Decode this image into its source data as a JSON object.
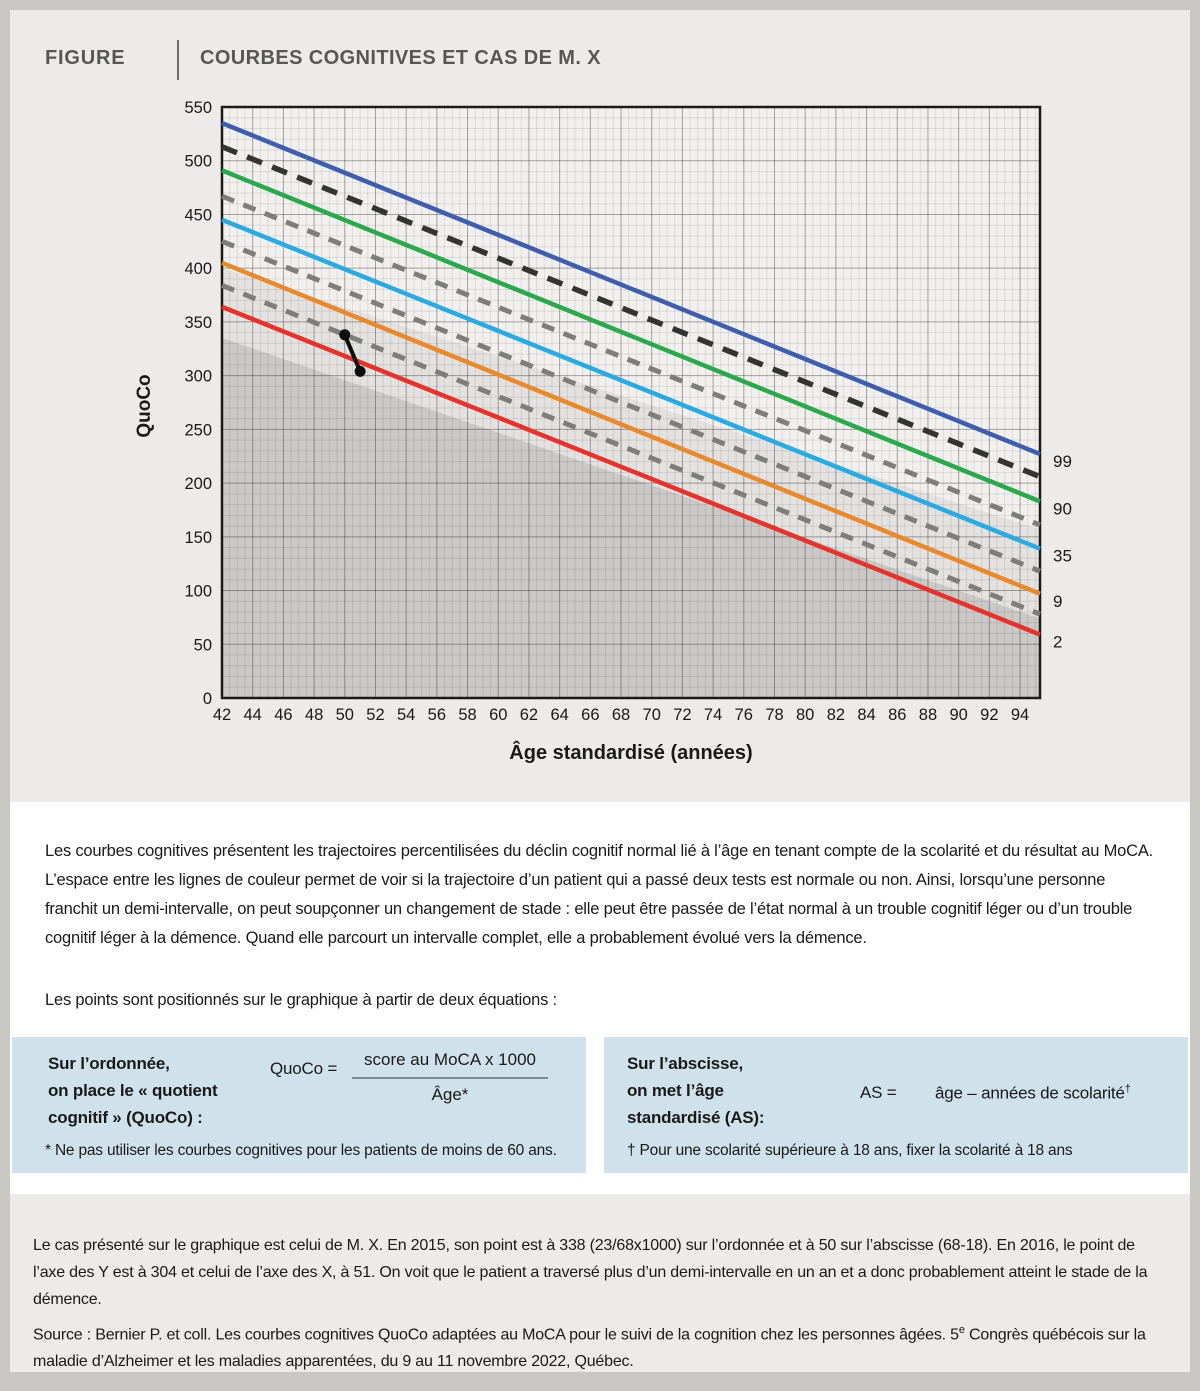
{
  "figure": {
    "label": "FIGURE",
    "title": "COURBES COGNITIVES ET CAS DE M. X"
  },
  "chart_data": {
    "type": "line",
    "xlabel": "Âge standardisé (années)",
    "ylabel": "QuoCo",
    "x_range": [
      42,
      95.3
    ],
    "y_range": [
      0,
      550
    ],
    "x_tick_start": 42,
    "x_tick_end": 94,
    "x_tick_step": 2,
    "x_minor_step": 0.5,
    "y_tick_step": 50,
    "y_minor_step": 10,
    "grid": true,
    "legend_position": "right-edge-percentile-labels",
    "series": [
      {
        "name": "percentile-99",
        "label": "99",
        "color": "#3D5EAC",
        "style": "solid",
        "width": 4.5,
        "y_start": 535,
        "y_end": 227
      },
      {
        "name": "half-interval-99-90",
        "label": "",
        "color": "#333333",
        "style": "dashed",
        "width": 5.5,
        "y_start": 513,
        "y_end": 206
      },
      {
        "name": "percentile-90",
        "label": "90",
        "color": "#2BA84A",
        "style": "solid",
        "width": 4.5,
        "y_start": 491,
        "y_end": 183
      },
      {
        "name": "half-interval-90-35",
        "label": "",
        "color": "#7D7D7D",
        "style": "dashed",
        "width": 5,
        "y_start": 467,
        "y_end": 161
      },
      {
        "name": "percentile-35",
        "label": "35",
        "color": "#2BA9E1",
        "style": "solid",
        "width": 4.5,
        "y_start": 445,
        "y_end": 139
      },
      {
        "name": "half-interval-35-9",
        "label": "",
        "color": "#7D7D7D",
        "style": "dashed",
        "width": 5,
        "y_start": 425,
        "y_end": 118
      },
      {
        "name": "percentile-9",
        "label": "9",
        "color": "#E8892D",
        "style": "solid",
        "width": 4.5,
        "y_start": 405,
        "y_end": 97
      },
      {
        "name": "half-interval-9-2",
        "label": "",
        "color": "#7D7D7D",
        "style": "dashed",
        "width": 5,
        "y_start": 384,
        "y_end": 78
      },
      {
        "name": "percentile-2",
        "label": "2",
        "color": "#E5322B",
        "style": "solid",
        "width": 4.5,
        "y_start": 364,
        "y_end": 59
      }
    ],
    "bands": [
      {
        "name": "zone-trouble-cognitif",
        "color": "#E3E2E0",
        "y_at_xmin": 400,
        "y_at_xmax": 157
      },
      {
        "name": "zone-demence",
        "color": "#CAC9C7",
        "y_at_xmin": 335,
        "y_at_xmax": 74
      }
    ],
    "patient": {
      "name": "cas-m-x",
      "color": "#0D0D0D",
      "points": [
        {
          "x": 50,
          "y": 338
        },
        {
          "x": 51,
          "y": 304
        }
      ]
    }
  },
  "description": {
    "p1": "Les courbes cognitives présentent les trajectoires percentilisées du déclin cognitif normal lié à l’âge en tenant compte de la scolarité et du résultat au MoCA. L’espace entre les lignes de couleur permet de voir si la trajectoire d’un patient qui a passé deux tests est normale ou non. Ainsi, lorsqu’une personne franchit un demi-intervalle, on peut soupçonner un changement de stade : elle peut être passée de l’état normal à un trouble cognitif léger ou d’un trouble cognitif léger à la démence. Quand elle parcourt un intervalle complet, elle a probablement évolué vers la démence.",
    "p2": "Les points sont positionnés sur le graphique à partir de deux équations :"
  },
  "ordinate_box": {
    "heading_lines": [
      "Sur l’ordonnée,",
      "on place le « quotient",
      "cognitif » (QuoCo) :"
    ],
    "lhs": "QuoCo =",
    "numerator": "score au MoCA x 1000",
    "denominator": "Âge*",
    "footnote": "* Ne pas utiliser les courbes cognitives pour les patients de moins de 60 ans."
  },
  "abscissa_box": {
    "heading_lines": [
      "Sur l’abscisse,",
      "on met l’âge",
      "standardisé (AS):"
    ],
    "lhs": "AS =",
    "rhs": "âge – années de scolarité",
    "rhs_sup": "†",
    "footnote": "† Pour une scolarité supérieure à 18 ans, fixer la scolarité à 18 ans"
  },
  "case_note": "Le cas présenté sur le graphique est celui de M. X. En 2015, son point est à 338 (23/68x1000) sur l’ordonnée et à 50 sur l’abscisse (68-18). En 2016, le point de l’axe des Y est à 304 et celui de l’axe des X, à 51. On voit que le patient a traversé plus d’un demi-intervalle en un an et a donc probablement atteint le stade de la démence.",
  "source": {
    "text_before": "Source : Bernier P. et coll. Les courbes cognitives QuoCo adaptées au MoCA pour le suivi de la cognition chez les personnes âgées. 5",
    "superscript": "e",
    "text_after": " Congrès québécois sur la maladie d’Alzheimer et les maladies apparentées, du 9 au 11 novembre 2022, Québec."
  },
  "colors": {
    "frame": "#C8C7C3",
    "figure_bg": "#ECEBE9",
    "white_bg": "#FFFFFF",
    "plot_bg": "#F1F0EE",
    "plot_border": "#1A1A1A",
    "box_bg": "#CFE1EB",
    "header_text": "#575756"
  }
}
